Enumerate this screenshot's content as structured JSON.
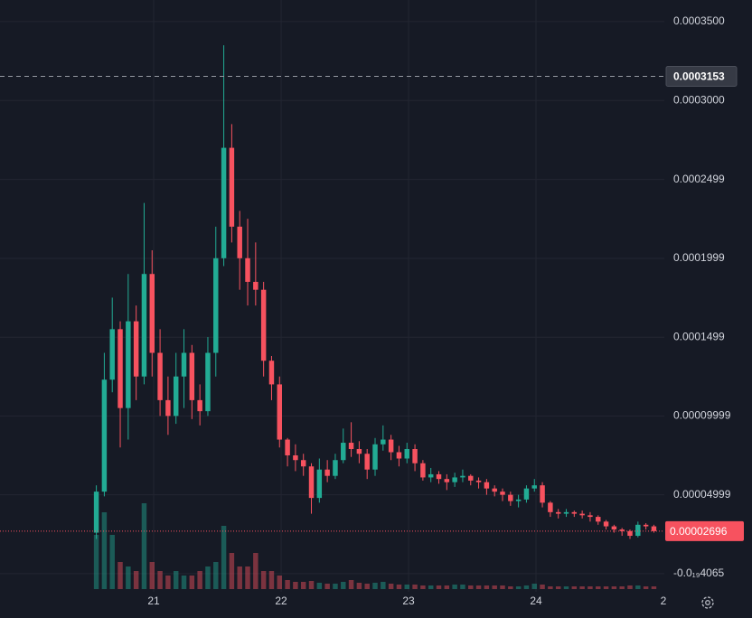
{
  "chart_data": {
    "type": "candlestick",
    "up_color": "#22ab94",
    "down_color": "#f7525f",
    "grid": true,
    "x": [
      20.55,
      20.6125,
      20.675,
      20.7375,
      20.8,
      20.8625,
      20.925,
      20.9875,
      21.05,
      21.1125,
      21.175,
      21.2375,
      21.3,
      21.3625,
      21.425,
      21.4875,
      21.55,
      21.6125,
      21.675,
      21.7375,
      21.8,
      21.8625,
      21.925,
      21.9875,
      22.05,
      22.1125,
      22.175,
      22.2375,
      22.3,
      22.3625,
      22.425,
      22.4875,
      22.55,
      22.6125,
      22.675,
      22.7375,
      22.8,
      22.8625,
      22.925,
      22.9875,
      23.05,
      23.1125,
      23.175,
      23.2375,
      23.3,
      23.3625,
      23.425,
      23.4875,
      23.55,
      23.6125,
      23.675,
      23.7375,
      23.8,
      23.8625,
      23.925,
      23.9875,
      24.05,
      24.1125,
      24.175,
      24.2375,
      24.3,
      24.3625,
      24.425,
      24.4875,
      24.55,
      24.6125,
      24.675,
      24.7375,
      24.8,
      24.8625,
      24.925
    ],
    "open": [
      2.6e-05,
      5.2e-05,
      0.000123,
      0.000155,
      0.000105,
      0.00016,
      0.000125,
      0.00019,
      0.00014,
      0.00011,
      0.0001,
      0.000125,
      0.00014,
      0.00011,
      0.000103,
      0.00014,
      0.0002,
      0.00027,
      0.00022,
      0.0002,
      0.000185,
      0.00018,
      0.000135,
      0.00012,
      8.5e-05,
      7.5e-05,
      7.2e-05,
      6.8e-05,
      4.8e-05,
      6.6e-05,
      6.2e-05,
      7.2e-05,
      8.3e-05,
      7.9e-05,
      7.6e-05,
      6.6e-05,
      8.2e-05,
      8.5e-05,
      7.7e-05,
      7.3e-05,
      7.9e-05,
      7e-05,
      6.1e-05,
      6.3e-05,
      6e-05,
      5.8e-05,
      6.1e-05,
      6.2e-05,
      5.9e-05,
      5.8e-05,
      5.4e-05,
      5.2e-05,
      5e-05,
      4.6e-05,
      4.7e-05,
      5.4e-05,
      5.6e-05,
      4.5e-05,
      3.9e-05,
      3.8e-05,
      3.9e-05,
      3.8e-05,
      3.7e-05,
      3.6e-05,
      3.3e-05,
      3e-05,
      2.8e-05,
      2.7e-05,
      2.4e-05,
      3.1e-05,
      3e-05
    ],
    "high": [
      5.6e-05,
      0.00014,
      0.000175,
      0.00016,
      0.00019,
      0.00017,
      0.000235,
      0.000205,
      0.000155,
      0.000125,
      0.00014,
      0.000155,
      0.000145,
      0.00012,
      0.00015,
      0.00022,
      0.000335,
      0.000285,
      0.00023,
      0.000225,
      0.00021,
      0.000185,
      0.000138,
      0.000125,
      8.6e-05,
      8.2e-05,
      7.6e-05,
      7e-05,
      7.3e-05,
      7.2e-05,
      7.6e-05,
      9.2e-05,
      9.6e-05,
      8.4e-05,
      7.9e-05,
      8.6e-05,
      9.4e-05,
      8.8e-05,
      8.1e-05,
      8.3e-05,
      8.2e-05,
      7.2e-05,
      6.7e-05,
      6.5e-05,
      6.3e-05,
      6.4e-05,
      6.6e-05,
      6.3e-05,
      6.1e-05,
      6e-05,
      5.6e-05,
      5.4e-05,
      5.2e-05,
      5e-05,
      5.6e-05,
      6e-05,
      5.8e-05,
      4.6e-05,
      4.1e-05,
      4.1e-05,
      4e-05,
      4e-05,
      3.9e-05,
      3.7e-05,
      3.4e-05,
      3.1e-05,
      2.9e-05,
      2.8e-05,
      3.3e-05,
      3.2e-05,
      3.1e-05
    ],
    "low": [
      2.2e-05,
      4.9e-05,
      0.000115,
      8e-05,
      8.5e-05,
      0.00011,
      0.00012,
      0.000125,
      0.0001,
      8.8e-05,
      9.5e-05,
      0.000105,
      9.8e-05,
      9.4e-05,
      0.0001,
      0.000125,
      0.000195,
      0.00021,
      0.00018,
      0.00017,
      0.00017,
      0.000125,
      0.00011,
      8e-05,
      6.8e-05,
      6.5e-05,
      6.2e-05,
      3.8e-05,
      4.5e-05,
      5.8e-05,
      6e-05,
      7e-05,
      7.4e-05,
      7e-05,
      6e-05,
      6.2e-05,
      7.8e-05,
      7.2e-05,
      6.8e-05,
      7e-05,
      6.5e-05,
      5.9e-05,
      5.8e-05,
      5.7e-05,
      5.3e-05,
      5.5e-05,
      5.8e-05,
      5.6e-05,
      5.4e-05,
      5e-05,
      4.9e-05,
      4.6e-05,
      4.3e-05,
      4.2e-05,
      4.5e-05,
      5.2e-05,
      4.2e-05,
      3.6e-05,
      3.5e-05,
      3.6e-05,
      3.6e-05,
      3.5e-05,
      3.3e-05,
      3.1e-05,
      2.8e-05,
      2.6e-05,
      2.4e-05,
      2.2e-05,
      2.3e-05,
      2.8e-05,
      2.6e-05
    ],
    "close": [
      5.2e-05,
      0.000123,
      0.000155,
      0.000105,
      0.00016,
      0.000125,
      0.00019,
      0.00014,
      0.00011,
      0.0001,
      0.000125,
      0.00014,
      0.00011,
      0.000103,
      0.00014,
      0.0002,
      0.00027,
      0.00022,
      0.0002,
      0.000185,
      0.00018,
      0.000135,
      0.00012,
      8.5e-05,
      7.5e-05,
      7.2e-05,
      6.8e-05,
      4.8e-05,
      6.6e-05,
      6.2e-05,
      7.2e-05,
      8.3e-05,
      7.9e-05,
      7.6e-05,
      6.6e-05,
      8.2e-05,
      8.5e-05,
      7.7e-05,
      7.3e-05,
      7.9e-05,
      7e-05,
      6.1e-05,
      6.3e-05,
      6e-05,
      5.8e-05,
      6.1e-05,
      6.2e-05,
      5.9e-05,
      5.8e-05,
      5.4e-05,
      5.2e-05,
      5e-05,
      4.6e-05,
      4.7e-05,
      5.4e-05,
      5.6e-05,
      4.5e-05,
      3.9e-05,
      3.8e-05,
      3.9e-05,
      3.8e-05,
      3.7e-05,
      3.6e-05,
      3.3e-05,
      3e-05,
      2.8e-05,
      2.7e-05,
      2.4e-05,
      3.1e-05,
      3e-05,
      2.696e-05
    ],
    "volume": [
      60,
      85,
      60,
      30,
      25,
      20,
      95,
      30,
      20,
      15,
      20,
      15,
      15,
      20,
      25,
      30,
      70,
      40,
      25,
      25,
      40,
      20,
      20,
      15,
      10,
      8,
      8,
      9,
      7,
      6,
      6,
      8,
      10,
      7,
      6,
      7,
      8,
      6,
      5,
      5,
      5,
      4,
      4,
      4,
      4,
      5,
      5,
      4,
      4,
      4,
      4,
      4,
      3,
      3,
      4,
      6,
      5,
      3,
      3,
      3,
      3,
      3,
      3,
      3,
      3,
      3,
      3,
      4,
      4,
      3,
      3
    ],
    "xlim": [
      19.794,
      25.007
    ],
    "xticks": [
      21,
      22,
      23,
      24,
      {
        "value": 25,
        "label": "2"
      }
    ],
    "ylim": [
      -1.15e-05,
      0.0003637
    ],
    "yticks": [
      {
        "value": 0.00035,
        "label": "0.0003500"
      },
      {
        "value": 0.0003,
        "label": "0.0003000"
      },
      0.0002499,
      0.0001999,
      0.0001499,
      9.999e-05,
      4.999e-05,
      {
        "value": -4.065e-20,
        "label": "-0.0₁₉4065"
      }
    ],
    "crosshair": 0.0003153,
    "last_price": 2.696e-05
  }
}
